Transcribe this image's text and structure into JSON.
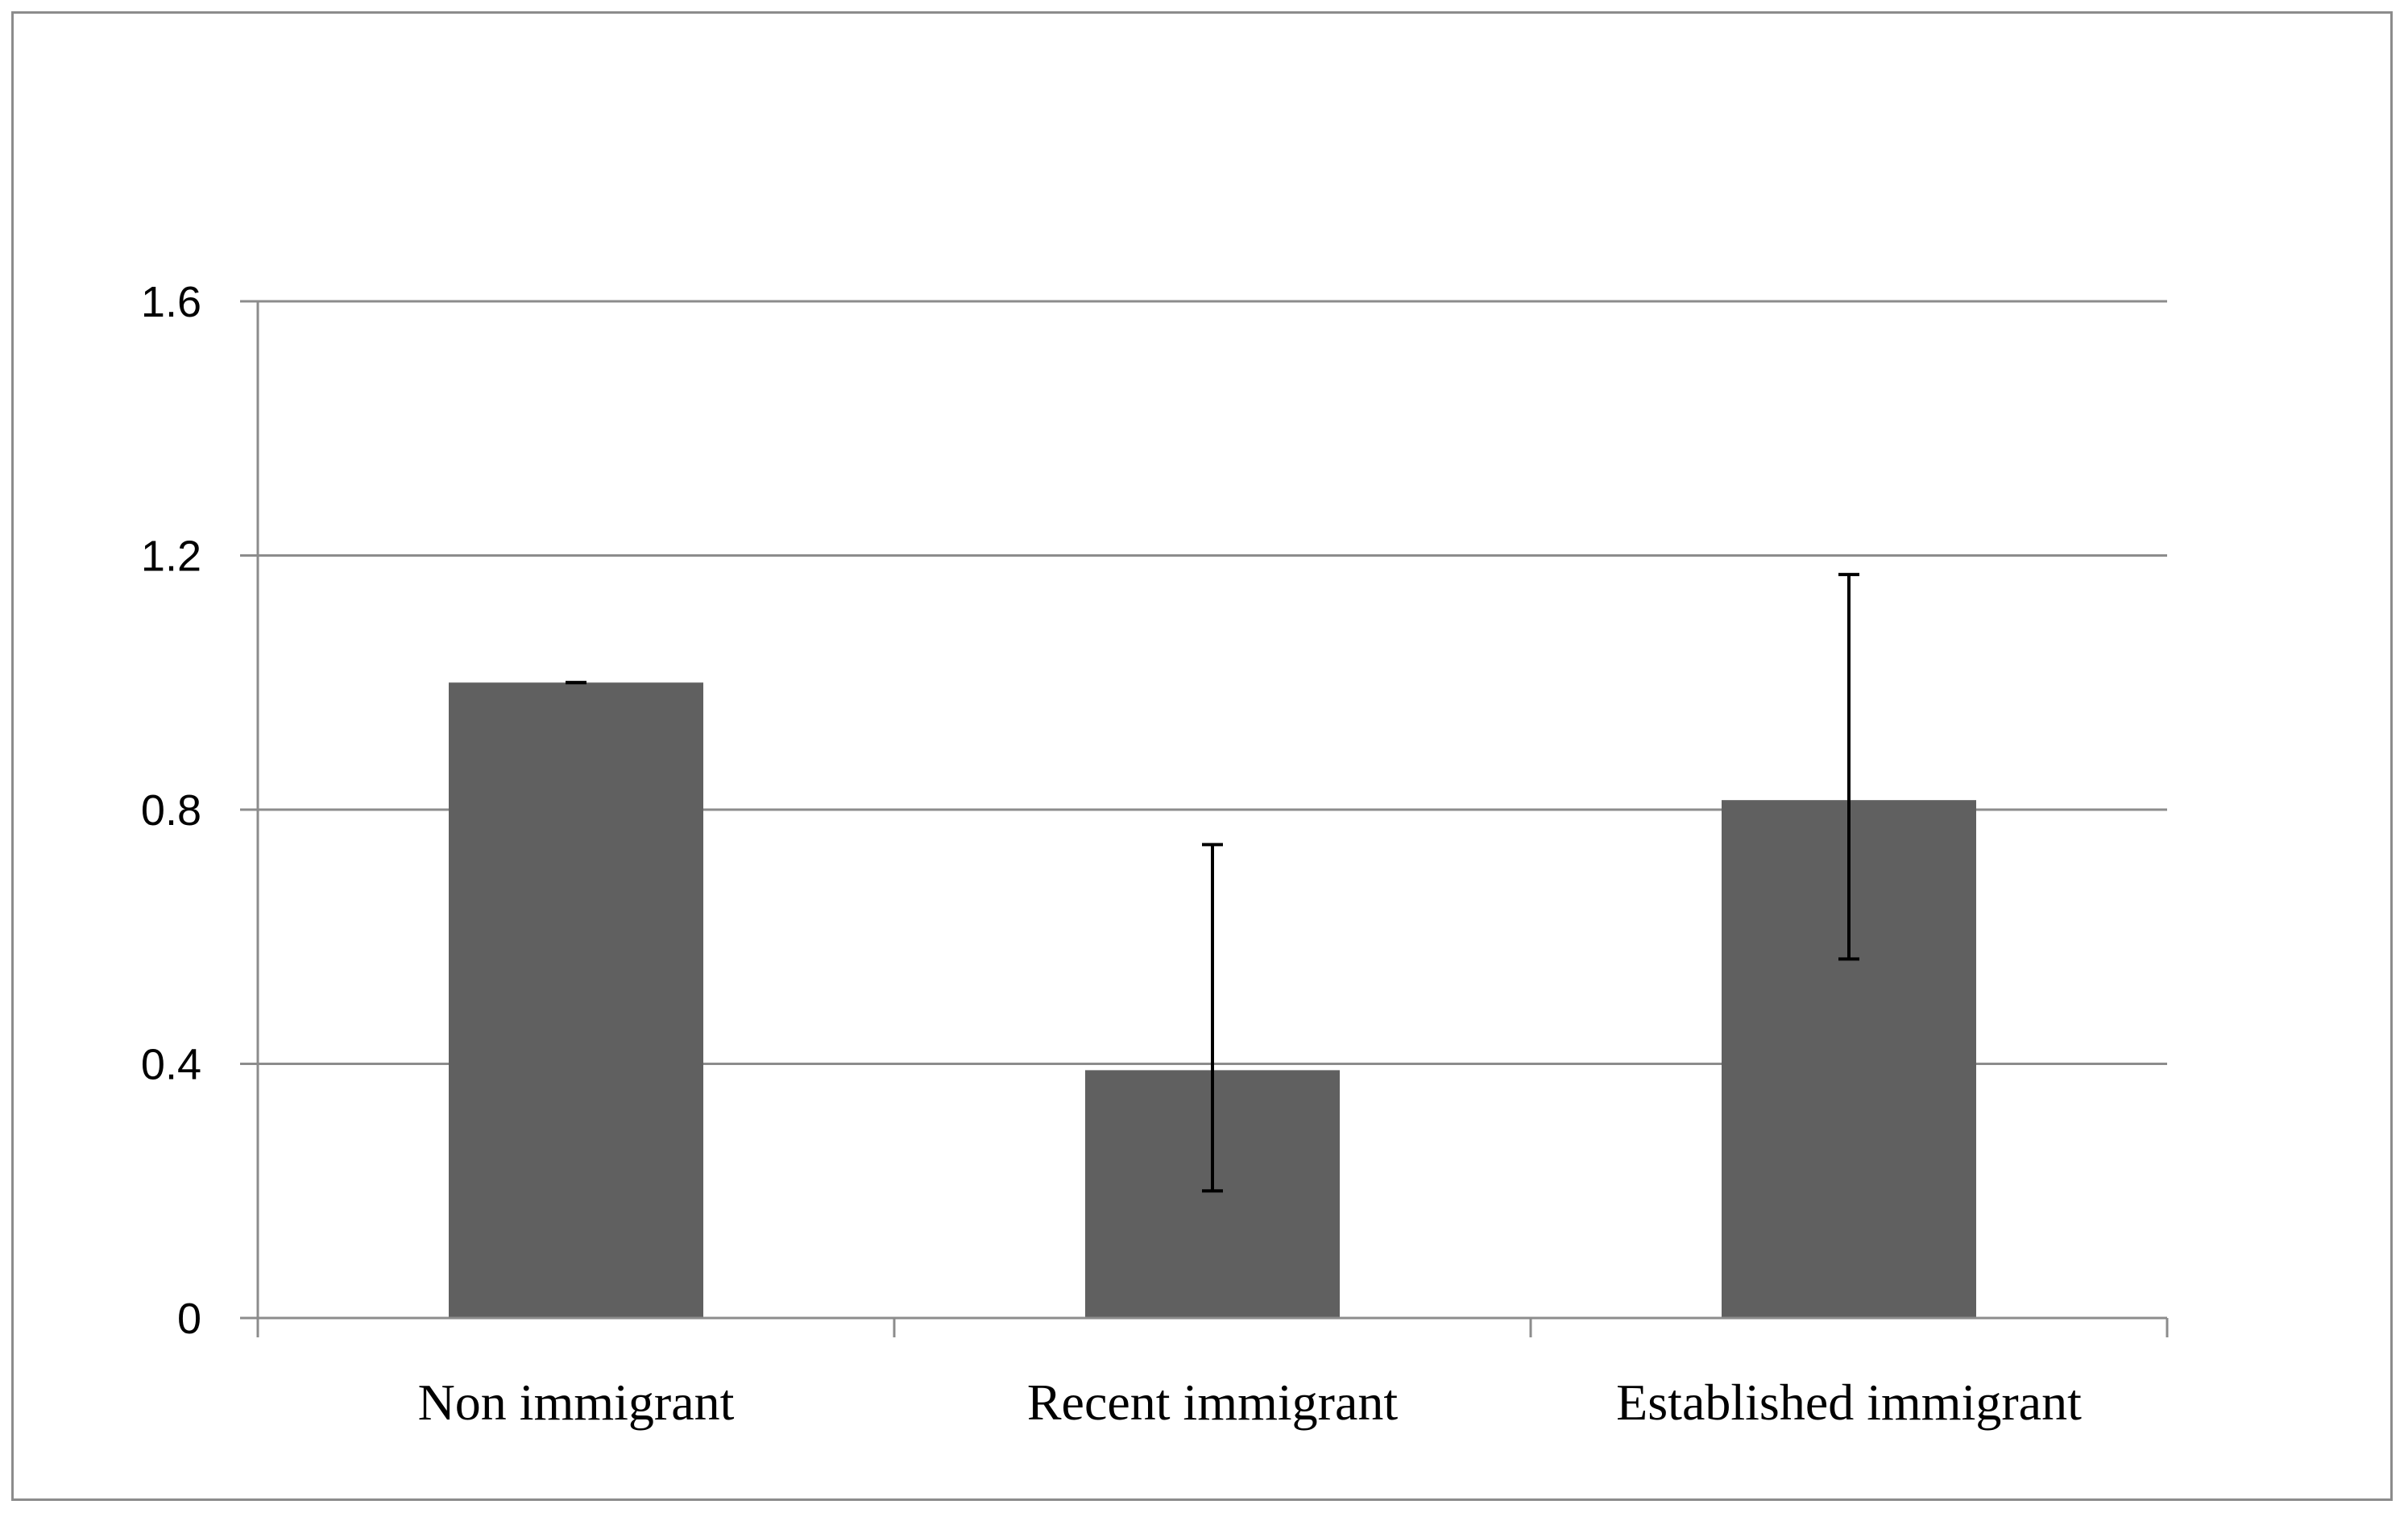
{
  "chart_data": {
    "type": "bar",
    "categories": [
      "Non immigrant",
      "Recent immigrant",
      "Established immigrant"
    ],
    "values": [
      1.0,
      0.39,
      0.815
    ],
    "error_bars": [
      {
        "low": 1.0,
        "high": 1.0
      },
      {
        "low": 0.2,
        "high": 0.745
      },
      {
        "low": 0.565,
        "high": 1.17
      }
    ],
    "y_ticks": [
      "0",
      "0.4",
      "0.8",
      "1.2",
      "1.6"
    ],
    "y_tick_values": [
      0,
      0.4,
      0.8,
      1.2,
      1.6
    ],
    "ylim": [
      0,
      1.6
    ],
    "title": "",
    "xlabel": "",
    "ylabel": "",
    "grid": true,
    "legend": "none",
    "colors": {
      "bar": "#606060",
      "gridline": "#8c8c8c",
      "axis": "#8c8c8c",
      "error_bar": "#000000"
    }
  }
}
